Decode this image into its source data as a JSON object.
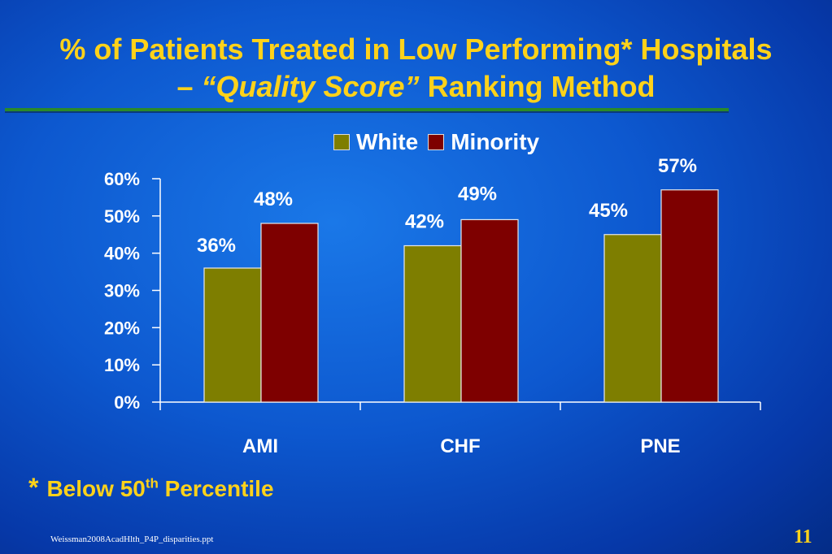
{
  "slide": {
    "title_line1": "% of Patients Treated in Low Performing* Hospitals",
    "title_dash": "– ",
    "title_quality": "“Quality Score”",
    "title_method": " Ranking Method",
    "footnote_star": "*",
    "footnote_text": "Below 50",
    "footnote_sup": "th",
    "footnote_tail": " Percentile",
    "source": "Weissman2008AcadHlth_P4P_disparities.ppt",
    "page_number": "11"
  },
  "colors": {
    "white_series": "#7e7e00",
    "minority_series": "#7e0000",
    "title": "#ffd21a",
    "axis": "#ffffff"
  },
  "chart_data": {
    "type": "bar",
    "categories": [
      "AMI",
      "CHF",
      "PNE"
    ],
    "series": [
      {
        "name": "White",
        "values": [
          36,
          42,
          45
        ],
        "labels": [
          "36%",
          "42%",
          "45%"
        ]
      },
      {
        "name": "Minority",
        "values": [
          48,
          49,
          57
        ],
        "labels": [
          "48%",
          "49%",
          "57%"
        ]
      }
    ],
    "ylim": [
      0,
      60
    ],
    "yticks": [
      0,
      10,
      20,
      30,
      40,
      50,
      60
    ],
    "ytick_labels": [
      "0%",
      "10%",
      "20%",
      "30%",
      "40%",
      "50%",
      "60%"
    ],
    "legend_position": "top",
    "grid": false
  }
}
